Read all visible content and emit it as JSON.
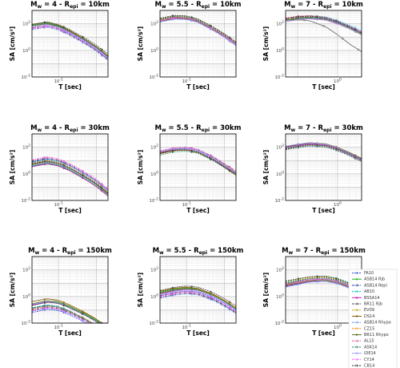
{
  "chart_data": {
    "type": "line",
    "xscale": "log",
    "yscale": "log",
    "xlabel": "T [sec]",
    "ylabel": "SA [cm/s²]",
    "grid": true,
    "legend_placement": "right of bottom-right panel",
    "legend": [
      "FA10",
      "ASB14 Rjb",
      "ASB14 Repi",
      "AB10",
      "BSSA14",
      "BR11 Rjb",
      "EV09",
      "DS14",
      "ASB14 Rhypo",
      "CZ15",
      "BR11 Rhypo",
      "AL15",
      "ASK14",
      "IDE14",
      "CY14",
      "CB14"
    ],
    "panels": [
      {
        "row": 1,
        "col": 1,
        "title": "M_w = 4 - R_epi = 10km",
        "title_parts": {
          "mag": "4",
          "dist": "10km"
        },
        "xlim": [
          0.02,
          2
        ],
        "ylim": [
          0.01,
          1000
        ],
        "x_ticks": [
          "10^-1"
        ],
        "y_ticks": [
          "10^2",
          "10^0",
          "10^-2"
        ],
        "curve": {
          "T": [
            0.02,
            0.05,
            0.1,
            0.2,
            0.5,
            1,
            2
          ],
          "SA_median": [
            60,
            90,
            55,
            22,
            5,
            1.4,
            0.3
          ]
        },
        "spread_decades": 0.16,
        "notes": "wide scatter across models, short-period peak"
      },
      {
        "row": 1,
        "col": 2,
        "title": "M_w = 5.5 - R_epi = 10km",
        "title_parts": {
          "mag": "5.5",
          "dist": "10km"
        },
        "xlim": [
          0.02,
          2
        ],
        "ylim": [
          0.01,
          1000
        ],
        "x_ticks": [
          "10^-1"
        ],
        "y_ticks": [
          "10^2",
          "10^0",
          "10^-2"
        ],
        "curve": {
          "T": [
            0.02,
            0.05,
            0.1,
            0.2,
            0.5,
            1,
            2
          ],
          "SA_median": [
            180,
            300,
            270,
            160,
            40,
            12,
            3
          ]
        },
        "spread_decades": 0.12
      },
      {
        "row": 1,
        "col": 3,
        "title": "M_w = 7 - R_epi = 10km",
        "title_parts": {
          "mag": "7",
          "dist": "10km"
        },
        "xlim": [
          0.05,
          4
        ],
        "ylim": [
          0.01,
          1000
        ],
        "x_ticks": [
          "10^0"
        ],
        "y_ticks": [
          "10^2",
          "10^0",
          "10^-2"
        ],
        "curve": {
          "T": [
            0.05,
            0.1,
            0.2,
            0.5,
            1,
            2,
            4
          ],
          "SA_median": [
            200,
            280,
            320,
            250,
            130,
            55,
            20
          ]
        },
        "spread_decades": 0.1,
        "outlier_curve": {
          "T": [
            0.05,
            0.1,
            0.2,
            0.5,
            1,
            2,
            4
          ],
          "SA": [
            180,
            200,
            170,
            60,
            15,
            3,
            0.8
          ],
          "color": "#7f7f7f"
        }
      },
      {
        "row": 2,
        "col": 1,
        "title": "M_w = 4 - R_epi = 30km",
        "title_parts": {
          "mag": "4",
          "dist": "30km"
        },
        "xlim": [
          0.02,
          2
        ],
        "ylim": [
          0.01,
          1000
        ],
        "x_ticks": [
          "10^-1"
        ],
        "y_ticks": [
          "10^2",
          "10^0",
          "10^-2"
        ],
        "curve": {
          "T": [
            0.02,
            0.05,
            0.1,
            0.2,
            0.5,
            1,
            2
          ],
          "SA_median": [
            6,
            10,
            7,
            3,
            0.7,
            0.2,
            0.04
          ]
        },
        "spread_decades": 0.2
      },
      {
        "row": 2,
        "col": 2,
        "title": "M_w = 5.5 - R_epi = 30km",
        "title_parts": {
          "mag": "5.5",
          "dist": "30km"
        },
        "xlim": [
          0.02,
          2
        ],
        "ylim": [
          0.01,
          1000
        ],
        "x_ticks": [
          "10^-1"
        ],
        "y_ticks": [
          "10^2",
          "10^0",
          "10^-2"
        ],
        "curve": {
          "T": [
            0.02,
            0.05,
            0.1,
            0.2,
            0.5,
            1,
            2
          ],
          "SA_median": [
            40,
            70,
            75,
            50,
            14,
            4,
            1.1
          ]
        },
        "spread_decades": 0.12
      },
      {
        "row": 2,
        "col": 3,
        "title": "M_w = 7 - R_epi = 30km",
        "title_parts": {
          "mag": "7",
          "dist": "30km"
        },
        "xlim": [
          0.05,
          4
        ],
        "ylim": [
          0.01,
          1000
        ],
        "x_ticks": [
          "10^0"
        ],
        "y_ticks": [
          "10^2",
          "10^0",
          "10^-2"
        ],
        "curve": {
          "T": [
            0.05,
            0.1,
            0.2,
            0.5,
            1,
            2,
            4
          ],
          "SA_median": [
            90,
            130,
            170,
            140,
            75,
            30,
            11
          ]
        },
        "spread_decades": 0.1
      },
      {
        "row": 3,
        "col": 1,
        "title": "M_w = 4 - R_epi = 150km",
        "title_parts": {
          "mag": "4",
          "dist": "150km"
        },
        "xlim": [
          0.02,
          2
        ],
        "ylim": [
          0.01,
          1000
        ],
        "x_ticks": [
          "10^-1"
        ],
        "y_ticks": [
          "10^2",
          "10^0",
          "10^-2"
        ],
        "curve": {
          "T": [
            0.02,
            0.05,
            0.1,
            0.2,
            0.5,
            1,
            2
          ],
          "SA_median": [
            0.15,
            0.25,
            0.2,
            0.09,
            0.025,
            0.008,
            0.002
          ]
        },
        "spread_decades": 0.3
      },
      {
        "row": 3,
        "col": 2,
        "title": "M_w = 5.5 - R_epi = 150km",
        "title_parts": {
          "mag": "5.5",
          "dist": "150km"
        },
        "xlim": [
          0.02,
          2
        ],
        "ylim": [
          0.01,
          1000
        ],
        "x_ticks": [
          "10^-1"
        ],
        "y_ticks": [
          "10^2",
          "10^0",
          "10^-2"
        ],
        "curve": {
          "T": [
            0.02,
            0.05,
            0.1,
            0.2,
            0.5,
            1,
            2
          ],
          "SA_median": [
            1.5,
            2.6,
            3.2,
            2.6,
            1.0,
            0.35,
            0.1
          ]
        },
        "spread_decades": 0.22
      },
      {
        "row": 3,
        "col": 3,
        "title": "M_w = 7 - R_epi = 150km",
        "title_parts": {
          "mag": "7",
          "dist": "150km"
        },
        "xlim": [
          0.05,
          4
        ],
        "ylim": [
          0.01,
          1000
        ],
        "x_ticks": [
          "10^0"
        ],
        "y_ticks": [
          "10^2",
          "10^0",
          "10^-2"
        ],
        "curve": {
          "T": [
            0.05,
            0.1,
            0.2,
            0.5,
            1,
            2,
            4
          ],
          "SA_median": [
            8,
            12,
            18,
            20,
            13,
            6,
            2.2
          ]
        },
        "spread_decades": 0.18
      }
    ],
    "series_colors": [
      "#3050d0",
      "#20b020",
      "#2040a0",
      "#00c0c0",
      "#c020c0",
      "#404040",
      "#c0a000",
      "#8a5a00",
      "#7090ff",
      "#ff8c00",
      "#607020",
      "#d060a0",
      "#208060",
      "#a0a0ff",
      "#ff60ff",
      "#303030"
    ]
  }
}
